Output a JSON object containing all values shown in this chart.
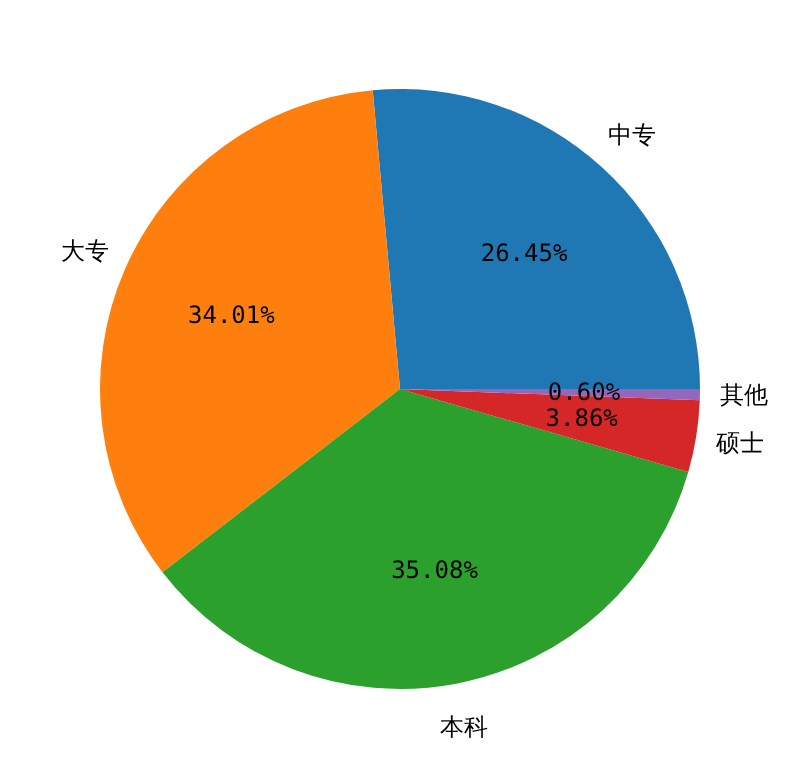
{
  "chart_data": {
    "type": "pie",
    "categories": [
      "中专",
      "大专",
      "本科",
      "硕士",
      "其他"
    ],
    "values": [
      26.45,
      34.01,
      35.08,
      3.86,
      0.6
    ],
    "colors": [
      "#1f77b4",
      "#ff7f0e",
      "#2ca02c",
      "#d62728",
      "#9467bd"
    ],
    "value_labels": [
      "26.45%",
      "34.01%",
      "35.08%",
      "3.86%",
      "0.60%"
    ]
  }
}
